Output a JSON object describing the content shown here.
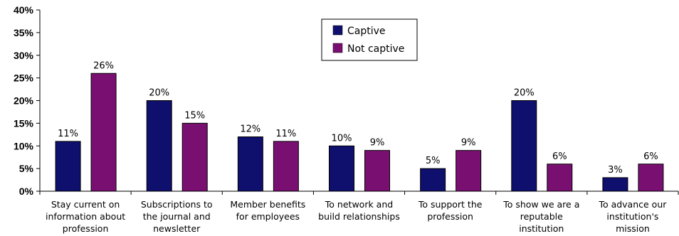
{
  "chart_data": {
    "type": "bar",
    "categories": [
      [
        "Stay current on",
        "information about",
        "profession"
      ],
      [
        "Subscriptions to",
        "the journal and",
        "newsletter"
      ],
      [
        "Member benefits",
        "for employees"
      ],
      [
        "To network and",
        "build relationships"
      ],
      [
        "To support the",
        "profession"
      ],
      [
        "To show we are a",
        "reputable",
        "institution"
      ],
      [
        "To advance our",
        "institution's",
        "mission"
      ]
    ],
    "series": [
      {
        "name": "Captive",
        "values": [
          11,
          20,
          12,
          10,
          5,
          20,
          3
        ],
        "color": "#0f0f6e"
      },
      {
        "name": "Not captive",
        "values": [
          26,
          15,
          11,
          9,
          9,
          6,
          6
        ],
        "color": "#7a0f72"
      }
    ],
    "data_labels": [
      [
        "11%",
        "20%",
        "12%",
        "10%",
        "5%",
        "20%",
        "3%"
      ],
      [
        "26%",
        "15%",
        "11%",
        "9%",
        "9%",
        "6%",
        "6%"
      ]
    ],
    "yticks": [
      "0%",
      "5%",
      "10%",
      "15%",
      "20%",
      "25%",
      "30%",
      "35%",
      "40%"
    ],
    "ylim": [
      0,
      40
    ],
    "title": "",
    "xlabel": "",
    "ylabel": "",
    "grid": false,
    "legend": "top-center"
  }
}
